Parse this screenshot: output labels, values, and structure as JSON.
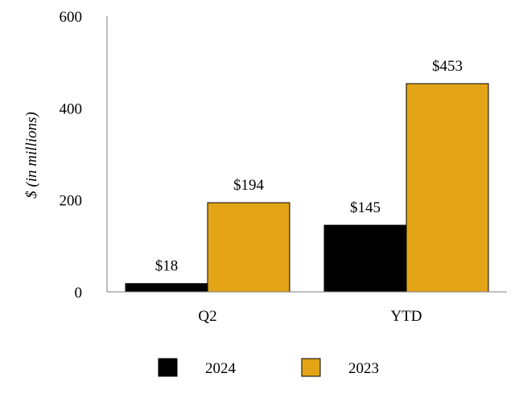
{
  "chart_data": {
    "type": "bar",
    "title": "",
    "xlabel": "",
    "ylabel": "$ (in millions)",
    "ylim": [
      0,
      600
    ],
    "yticks": [
      0,
      200,
      400,
      600
    ],
    "categories": [
      "Q2",
      "YTD"
    ],
    "series": [
      {
        "name": "2024",
        "color": "#000000",
        "values": [
          18,
          145
        ],
        "labels": [
          "$18",
          "$145"
        ]
      },
      {
        "name": "2023",
        "color": "#E3A417",
        "values": [
          194,
          453
        ],
        "labels": [
          "$194",
          "$453"
        ]
      }
    ],
    "grid": false,
    "legend_position": "bottom"
  }
}
